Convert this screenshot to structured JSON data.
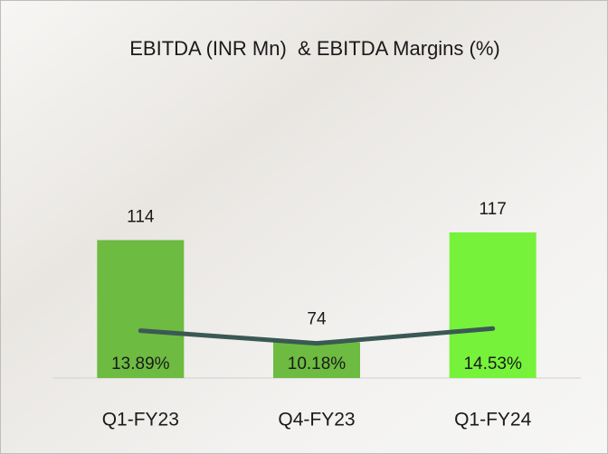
{
  "chart_data": {
    "type": "bar-line",
    "title": "EBITDA (INR Mn)  & EBITDA Margins (%)",
    "categories": [
      "Q1-FY23",
      "Q4-FY23",
      "Q1-FY24"
    ],
    "ylim": [
      60,
      180
    ],
    "y2lim": [
      0,
      90
    ],
    "series": [
      {
        "type": "bar",
        "values": [
          114,
          74,
          117
        ],
        "colors": [
          "#6dbb41",
          "#6dbb41",
          "#76f23a"
        ]
      },
      {
        "type": "line",
        "axis": "y2",
        "values": [
          13.89,
          10.18,
          14.53
        ],
        "value_labels": [
          "13.89%",
          "10.18%",
          "14.53%"
        ],
        "color": "#3b5954"
      }
    ]
  }
}
